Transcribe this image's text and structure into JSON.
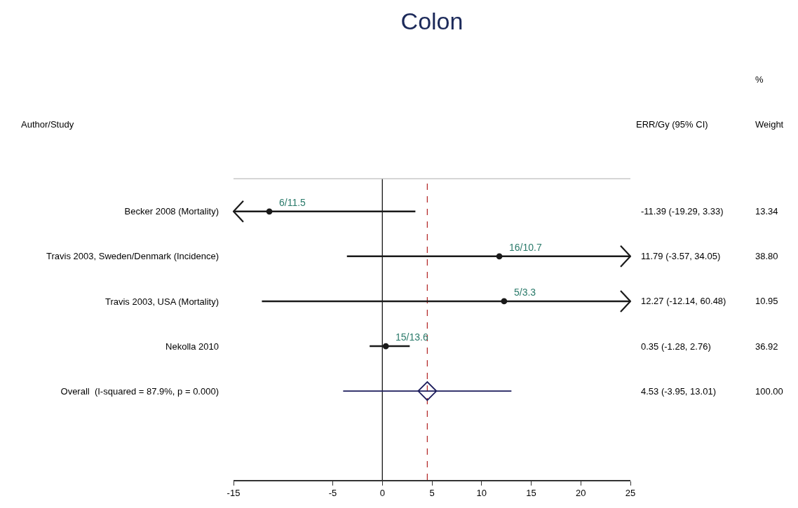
{
  "chart_data": {
    "type": "scatter",
    "orientation": "horizontal",
    "title": "Colon",
    "categories": [
      "Becker 2008 (Mortality)",
      "Travis 2003, Sweden/Denmark (Incidence)",
      "Travis 2003, USA (Mortality)",
      "Nekolla 2010",
      "Overall  (I-squared = 87.9%, p = 0.000)"
    ],
    "series": [
      {
        "color": "#1a1a1a",
        "marker": "circle",
        "values": [
          -11.39,
          11.79,
          12.27,
          0.35,
          null
        ],
        "errors": [
          [
            -19.29,
            3.33
          ],
          [
            -3.57,
            34.05
          ],
          [
            -12.14,
            60.48
          ],
          [
            -1.28,
            2.76
          ],
          null
        ]
      },
      {
        "color": "#1c1c5c",
        "marker": "diamond",
        "values": [
          null,
          null,
          null,
          null,
          4.53
        ],
        "errors": [
          null,
          null,
          null,
          null,
          [
            -3.95,
            13.01
          ]
        ]
      }
    ],
    "xlim": [
      -15,
      25
    ],
    "xticks": [
      -15,
      -5,
      0,
      5,
      10,
      15,
      20,
      25
    ],
    "ref_lines": [
      {
        "axis": "x",
        "value": 0,
        "color": "#000000",
        "line_style": "solid"
      },
      {
        "axis": "x",
        "value": 4.53,
        "color": "#b22222",
        "line_style": "dashed"
      }
    ],
    "annotations": [
      "Author/Study",
      "ERR/Gy (95% CI)",
      "%",
      "Weight",
      "-11.39 (-19.29, 3.33)",
      "11.79 (-3.57, 34.05)",
      "12.27 (-12.14, 60.48)",
      "0.35 (-1.28, 2.76)",
      "4.53 (-3.95, 13.01)",
      "13.34",
      "38.80",
      "10.95",
      "36.92",
      "100.00",
      "6/11.5",
      "16/10.7",
      "5/3.3",
      "15/13.6"
    ],
    "grid": false
  }
}
